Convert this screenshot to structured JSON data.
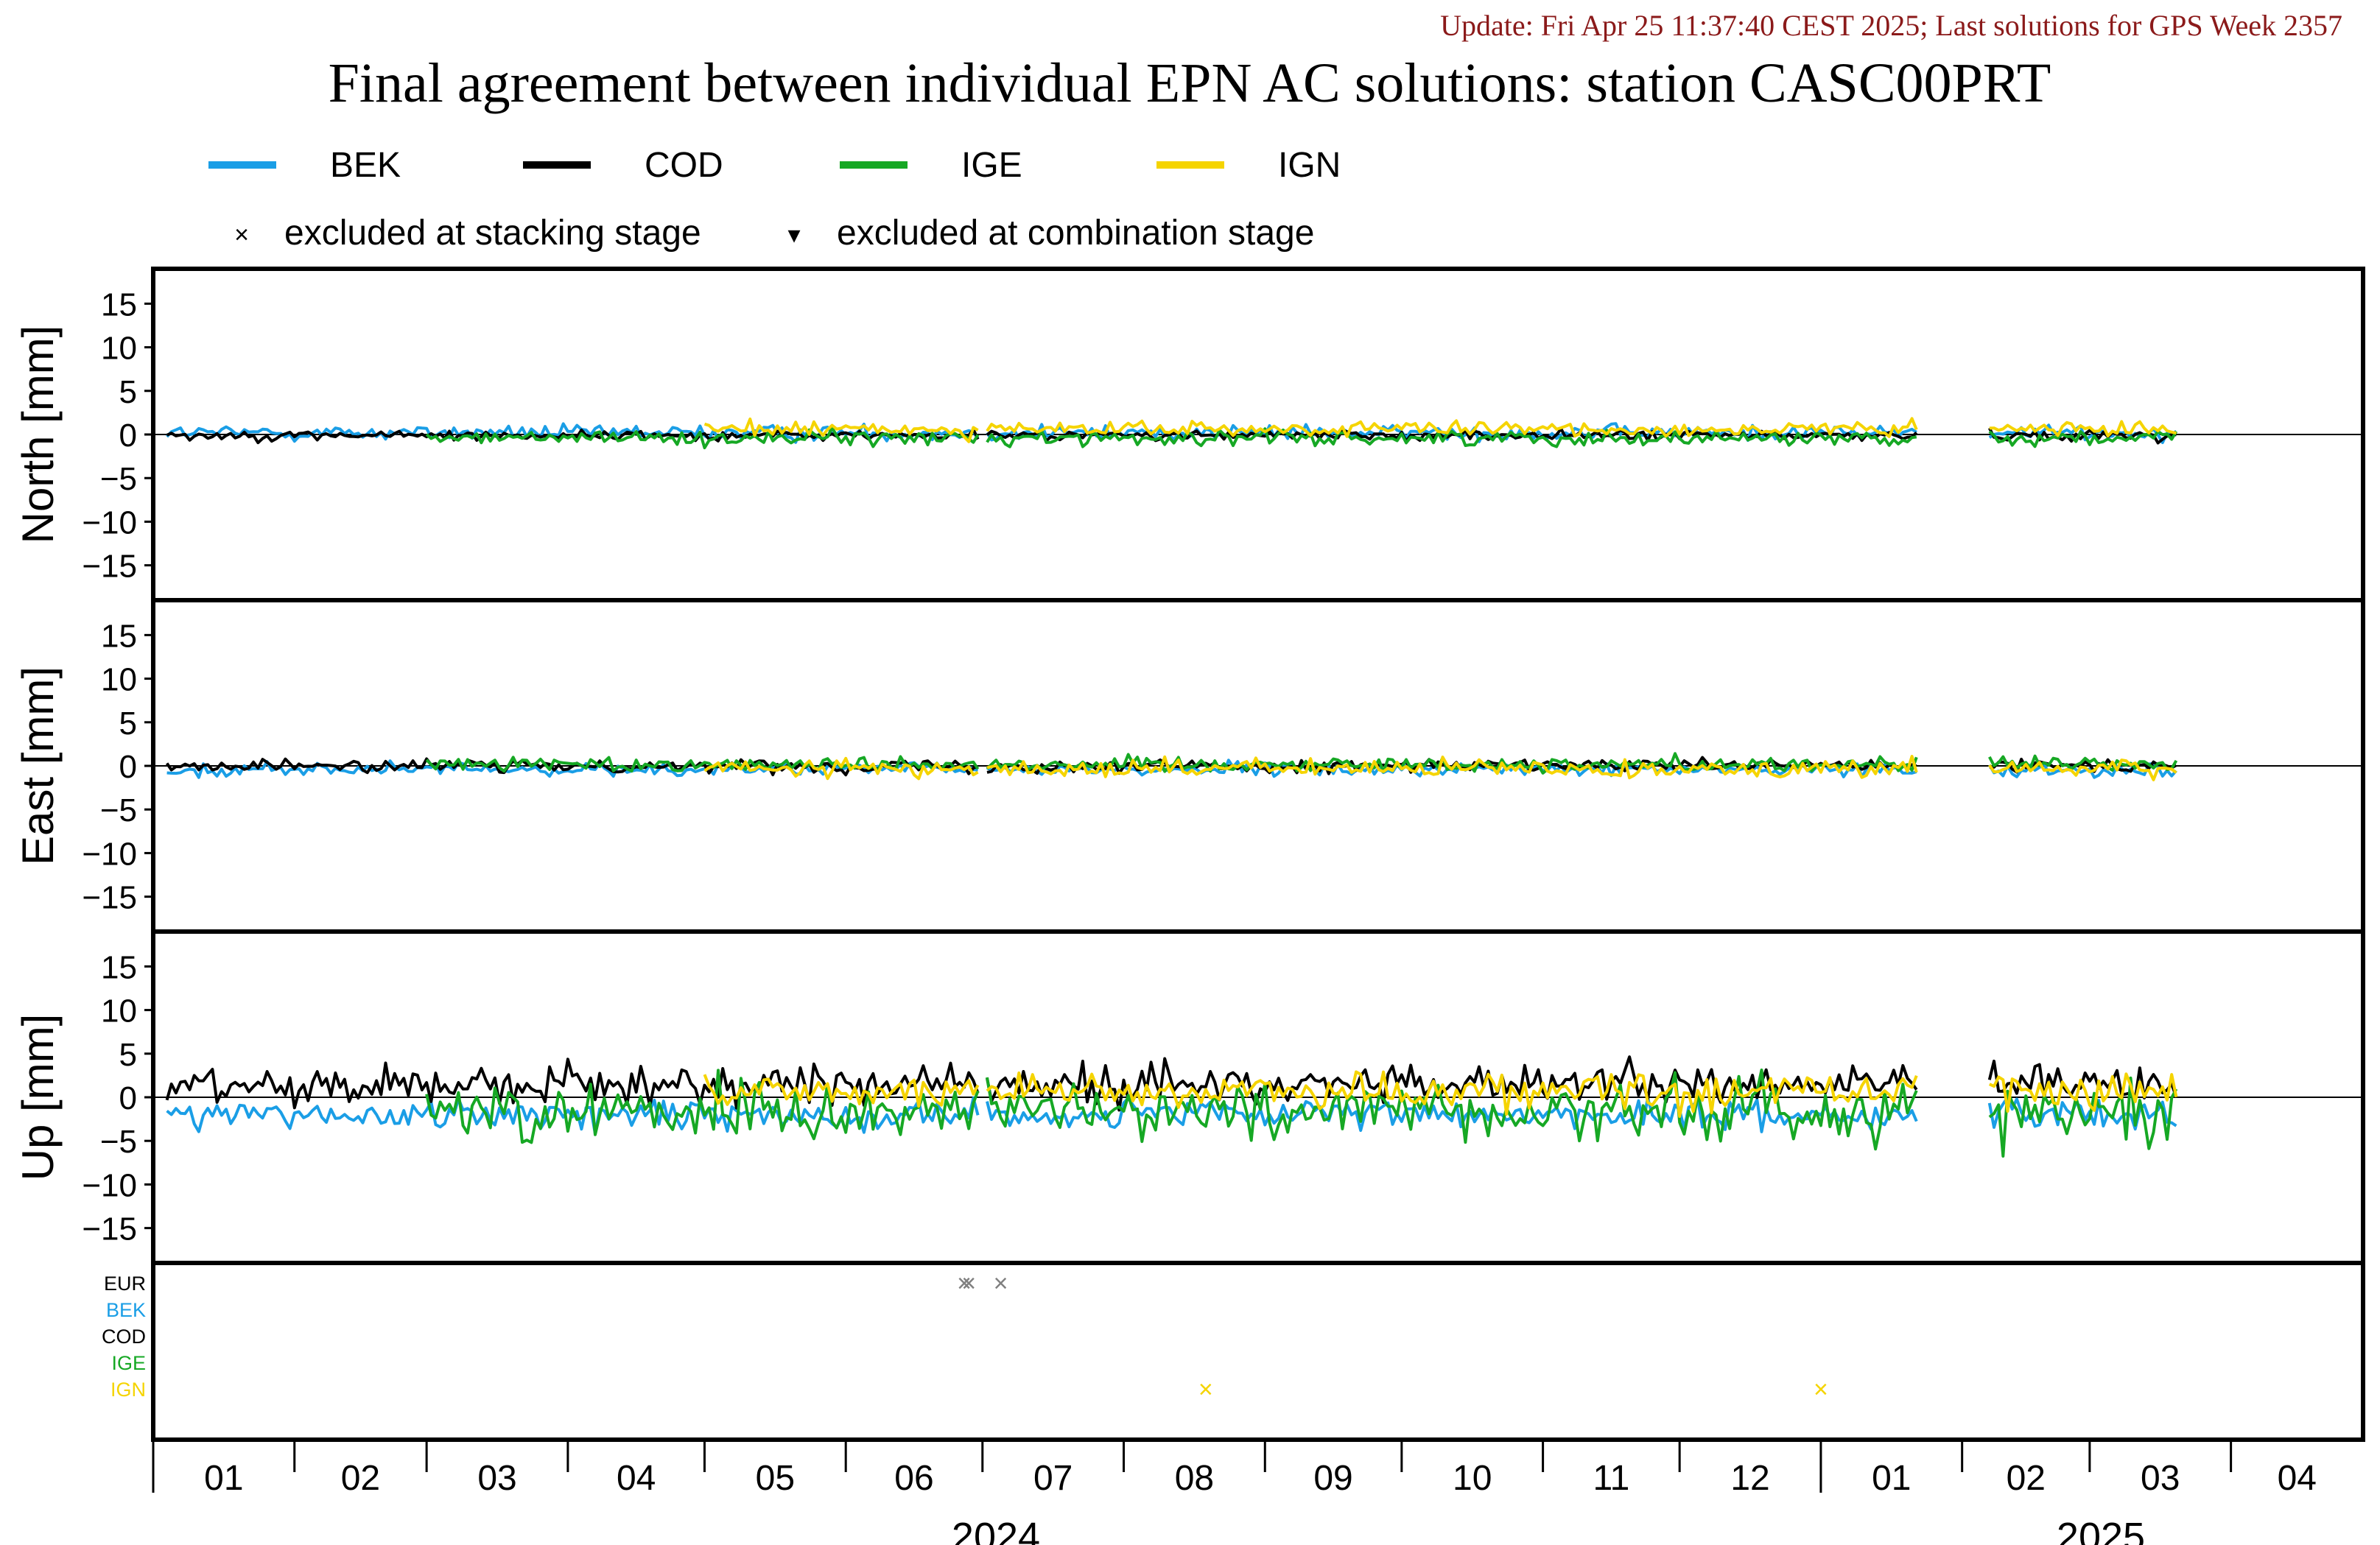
{
  "header": {
    "update_line": "Update: Fri Apr 25 11:37:40 CEST 2025; Last solutions for GPS Week 2357",
    "title": "Final agreement between individual EPN AC solutions: station CASC00PRT"
  },
  "colors": {
    "BEK": "#1a9ee6",
    "COD": "#000000",
    "IGE": "#16a824",
    "IGN": "#f5d400",
    "update_text": "#8b1a1a",
    "EUR": "#000000",
    "excluded_marker": "#808080"
  },
  "legend": {
    "series": [
      "BEK",
      "COD",
      "IGE",
      "IGN"
    ],
    "markers": [
      {
        "symbol": "×",
        "label": "excluded at stacking stage"
      },
      {
        "symbol": "▾",
        "label": "excluded at combination stage"
      }
    ]
  },
  "chart_data": {
    "type": "line",
    "x_unit": "month",
    "x_range": [
      "2024-01-01",
      "2025-04-30"
    ],
    "month_ticks": [
      "01",
      "02",
      "03",
      "04",
      "05",
      "06",
      "07",
      "08",
      "09",
      "10",
      "11",
      "12",
      "01",
      "02",
      "03",
      "04"
    ],
    "years": [
      "2024",
      "2025"
    ],
    "panels": [
      {
        "ylabel": "North [mm]",
        "ylim": [
          -19,
          19
        ],
        "yticks": [
          "15",
          "10",
          "5",
          "0",
          "−5",
          "−10",
          "−15"
        ],
        "series": [
          {
            "name": "BEK",
            "approx_mean_mm": 0.2,
            "approx_spread_mm": 0.6
          },
          {
            "name": "COD",
            "approx_mean_mm": -0.1,
            "approx_spread_mm": 0.4
          },
          {
            "name": "IGE",
            "approx_mean_mm": -0.4,
            "approx_spread_mm": 0.6
          },
          {
            "name": "IGN",
            "approx_mean_mm": 0.6,
            "approx_spread_mm": 0.6
          }
        ]
      },
      {
        "ylabel": "East [mm]",
        "ylim": [
          -19,
          19
        ],
        "yticks": [
          "15",
          "10",
          "5",
          "0",
          "−5",
          "−10",
          "−15"
        ],
        "series": [
          {
            "name": "BEK",
            "approx_mean_mm": -0.4,
            "approx_spread_mm": 0.5
          },
          {
            "name": "COD",
            "approx_mean_mm": 0.0,
            "approx_spread_mm": 0.5
          },
          {
            "name": "IGE",
            "approx_mean_mm": 0.2,
            "approx_spread_mm": 0.6
          },
          {
            "name": "IGN",
            "approx_mean_mm": -0.3,
            "approx_spread_mm": 0.7
          }
        ]
      },
      {
        "ylabel": "Up [mm]",
        "ylim": [
          -19,
          19
        ],
        "yticks": [
          "15",
          "10",
          "5",
          "0",
          "−5",
          "−10",
          "−15"
        ],
        "series": [
          {
            "name": "BEK",
            "approx_mean_mm": -2.0,
            "approx_spread_mm": 1.2
          },
          {
            "name": "COD",
            "approx_mean_mm": 1.5,
            "approx_spread_mm": 1.5
          },
          {
            "name": "IGE",
            "approx_mean_mm": -1.5,
            "approx_spread_mm": 2.5
          },
          {
            "name": "IGN",
            "approx_mean_mm": 0.8,
            "approx_spread_mm": 1.5
          }
        ]
      }
    ],
    "exclusions": {
      "rows": [
        "EUR",
        "BEK",
        "COD",
        "IGE",
        "IGN"
      ],
      "points": [
        {
          "row": "EUR",
          "date": "2024-06-27",
          "stage": "stacking"
        },
        {
          "row": "EUR",
          "date": "2024-06-28",
          "stage": "stacking"
        },
        {
          "row": "EUR",
          "date": "2024-07-05",
          "stage": "stacking"
        },
        {
          "row": "IGN",
          "date": "2024-08-19",
          "stage": "stacking"
        },
        {
          "row": "IGN",
          "date": "2025-01-01",
          "stage": "stacking"
        }
      ]
    },
    "data_gaps": [
      [
        "2024-07-01",
        "2024-07-01"
      ],
      [
        "2025-01-23",
        "2025-02-06"
      ]
    ],
    "data_end": "2025-03-20"
  }
}
